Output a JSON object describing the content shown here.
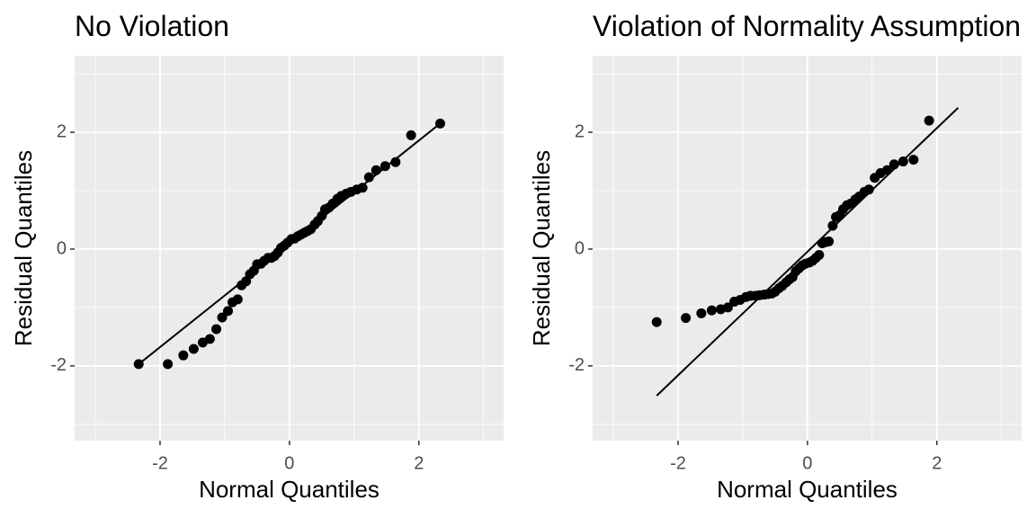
{
  "chart_data": [
    {
      "type": "scatter",
      "title": "No Violation",
      "x_label": "Normal Quantiles",
      "y_label": "Residual Quantiles",
      "xlim": [
        -3.32,
        3.31
      ],
      "ylim": [
        -3.28,
        3.31
      ],
      "xticks": [
        -2,
        0,
        2
      ],
      "yticks": [
        -2,
        0,
        2
      ],
      "grid": true,
      "color": "#000000",
      "x": [
        -2.33,
        -1.88,
        -1.64,
        -1.48,
        -1.34,
        -1.23,
        -1.13,
        -1.04,
        -0.95,
        -0.88,
        -0.8,
        -0.74,
        -0.67,
        -0.61,
        -0.55,
        -0.5,
        -0.44,
        -0.39,
        -0.33,
        -0.28,
        -0.23,
        -0.18,
        -0.13,
        -0.08,
        -0.03,
        0.03,
        0.08,
        0.13,
        0.18,
        0.23,
        0.28,
        0.33,
        0.39,
        0.44,
        0.5,
        0.55,
        0.61,
        0.67,
        0.74,
        0.8,
        0.88,
        0.95,
        1.04,
        1.13,
        1.23,
        1.34,
        1.48,
        1.64,
        1.88,
        2.33
      ],
      "values": [
        -1.97,
        -1.97,
        -1.82,
        -1.71,
        -1.6,
        -1.54,
        -1.37,
        -1.17,
        -1.06,
        -0.91,
        -0.86,
        -0.62,
        -0.55,
        -0.43,
        -0.37,
        -0.26,
        -0.25,
        -0.2,
        -0.15,
        -0.15,
        -0.12,
        -0.06,
        0.02,
        0.06,
        0.11,
        0.17,
        0.18,
        0.22,
        0.25,
        0.28,
        0.31,
        0.34,
        0.42,
        0.48,
        0.57,
        0.68,
        0.71,
        0.78,
        0.86,
        0.91,
        0.95,
        0.98,
        1.02,
        1.05,
        1.23,
        1.35,
        1.42,
        1.49,
        1.95,
        2.15
      ],
      "reference_line": {
        "x": [
          -2.33,
          2.33
        ],
        "y": [
          -1.97,
          2.15
        ]
      }
    },
    {
      "type": "scatter",
      "title": "Violation of Normality Assumption",
      "x_label": "Normal Quantiles",
      "y_label": "Residual Quantiles",
      "xlim": [
        -3.32,
        3.31
      ],
      "ylim": [
        -3.28,
        3.31
      ],
      "xticks": [
        -2,
        0,
        2
      ],
      "yticks": [
        -2,
        0,
        2
      ],
      "grid": true,
      "color": "#000000",
      "x": [
        -2.33,
        -1.88,
        -1.64,
        -1.48,
        -1.34,
        -1.23,
        -1.13,
        -1.04,
        -0.95,
        -0.88,
        -0.8,
        -0.74,
        -0.67,
        -0.61,
        -0.55,
        -0.5,
        -0.44,
        -0.39,
        -0.33,
        -0.28,
        -0.23,
        -0.18,
        -0.13,
        -0.08,
        -0.03,
        0.03,
        0.08,
        0.13,
        0.18,
        0.23,
        0.28,
        0.33,
        0.39,
        0.44,
        0.5,
        0.55,
        0.61,
        0.67,
        0.74,
        0.8,
        0.88,
        0.95,
        1.04,
        1.13,
        1.23,
        1.34,
        1.48,
        1.64,
        1.88
      ],
      "values": [
        -1.25,
        -1.18,
        -1.1,
        -1.05,
        -1.03,
        -1.0,
        -0.9,
        -0.87,
        -0.82,
        -0.8,
        -0.8,
        -0.79,
        -0.78,
        -0.77,
        -0.76,
        -0.73,
        -0.67,
        -0.63,
        -0.57,
        -0.52,
        -0.48,
        -0.38,
        -0.33,
        -0.28,
        -0.25,
        -0.23,
        -0.2,
        -0.15,
        -0.1,
        0.1,
        0.12,
        0.13,
        0.4,
        0.55,
        0.58,
        0.68,
        0.75,
        0.78,
        0.85,
        0.9,
        0.98,
        1.02,
        1.22,
        1.3,
        1.35,
        1.45,
        1.5,
        1.53,
        2.2
      ],
      "reference_line": {
        "x": [
          -2.33,
          2.33
        ],
        "y": [
          -2.51,
          2.42
        ]
      }
    }
  ]
}
